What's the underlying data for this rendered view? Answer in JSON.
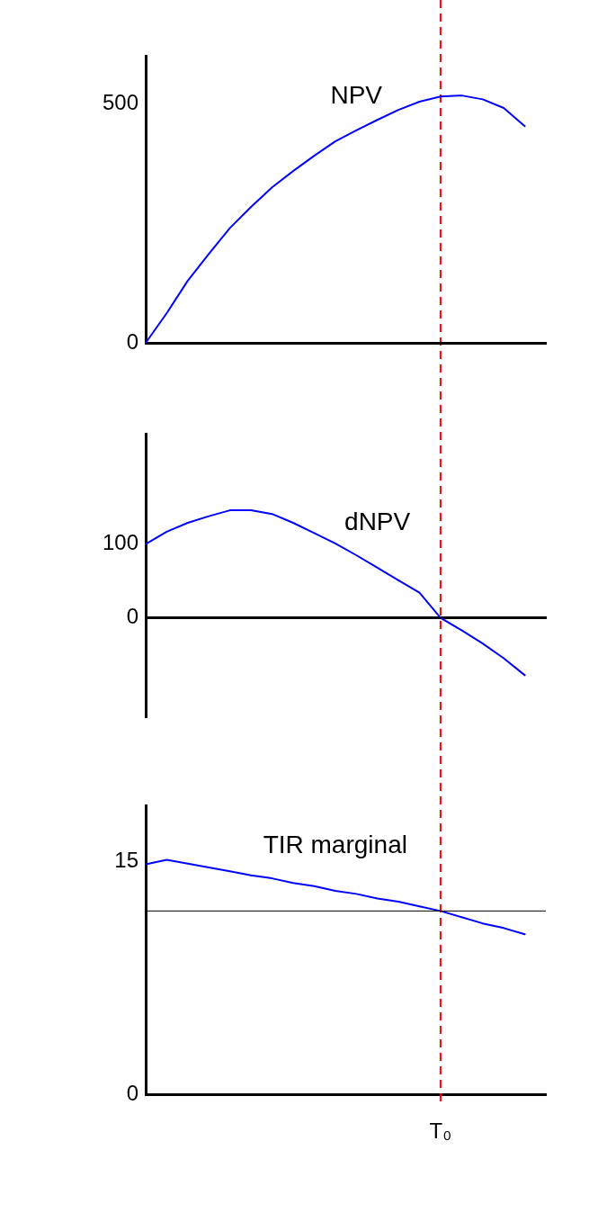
{
  "chart_data": [
    {
      "type": "line",
      "categories": [
        null,
        null,
        null,
        null,
        null,
        null,
        null,
        null,
        null,
        null,
        null,
        null,
        null,
        null,
        null,
        null,
        null,
        null,
        null,
        null
      ],
      "series": [
        {
          "name": "NPV",
          "color": "#0000ff",
          "values": [
            0,
            62,
            130,
            186,
            240,
            284,
            325,
            359,
            391,
            421,
            444,
            466,
            487,
            504,
            515,
            517,
            509,
            491,
            453,
            null
          ]
        }
      ],
      "ylim": [
        0,
        600
      ],
      "yticks": [
        0,
        500
      ],
      "tick_labels": "y",
      "grid": false,
      "legend": false,
      "marker": "none",
      "line_style": "solid"
    },
    {
      "type": "line",
      "categories": [
        null,
        null,
        null,
        null,
        null,
        null,
        null,
        null,
        null,
        null,
        null,
        null,
        null,
        null,
        null,
        null,
        null,
        null,
        null,
        null
      ],
      "series": [
        {
          "name": "dNPV",
          "color": "#0000ff",
          "values": [
            100,
            117,
            129,
            138,
            146,
            146,
            141,
            129,
            115,
            101,
            85,
            68,
            51,
            34,
            0,
            -17,
            -35,
            -55,
            -78,
            null
          ]
        }
      ],
      "ylim": [
        -135,
        250
      ],
      "yticks": [
        0,
        100
      ],
      "tick_labels": "y",
      "grid": false,
      "legend": false,
      "marker": "none",
      "line_style": "solid",
      "ref_lines": [
        {
          "axis": "y",
          "value": 0,
          "color": "#000000"
        }
      ]
    },
    {
      "type": "line",
      "categories": [
        null,
        null,
        null,
        null,
        null,
        null,
        null,
        null,
        null,
        null,
        null,
        null,
        null,
        null,
        "T₀",
        null,
        null,
        null,
        null,
        null
      ],
      "series": [
        {
          "name": "TIR marginal",
          "color": "#0000ff",
          "values": [
            14.8,
            15.1,
            14.85,
            14.6,
            14.35,
            14.1,
            13.9,
            13.6,
            13.4,
            13.1,
            12.9,
            12.6,
            12.4,
            12.1,
            11.8,
            11.4,
            11.0,
            10.7,
            10.3,
            null
          ]
        }
      ],
      "ylim": [
        0,
        18.6
      ],
      "yticks": [
        0,
        15
      ],
      "grid": false,
      "legend": false,
      "marker": "none",
      "line_style": "solid",
      "ref_lines": [
        {
          "axis": "x",
          "value": "T₀",
          "color": "#ff0000",
          "line_style": "dashed"
        },
        {
          "axis": "y",
          "value": 11.8,
          "color": "#000000"
        }
      ]
    }
  ]
}
